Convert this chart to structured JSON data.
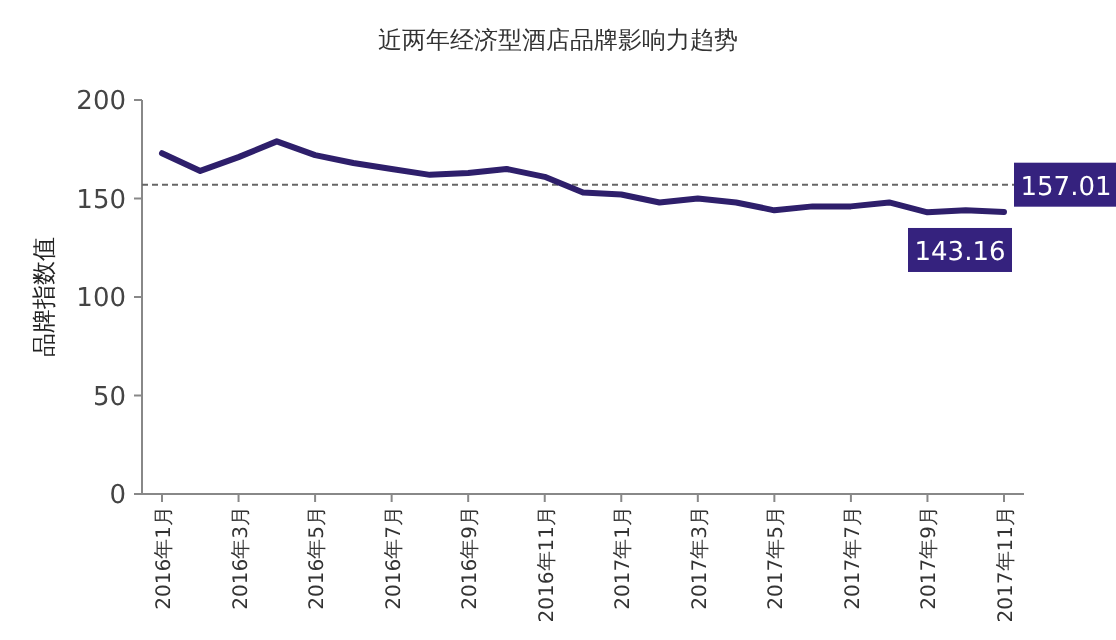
{
  "chart_data": {
    "type": "line",
    "title": "近两年经济型酒店品牌影响力趋势",
    "ylabel": "品牌指数值",
    "categories": [
      "2016年1月",
      null,
      "2016年3月",
      null,
      "2016年5月",
      null,
      "2016年7月",
      null,
      "2016年9月",
      null,
      "2016年11月",
      null,
      "2017年1月",
      null,
      "2017年3月",
      null,
      "2017年5月",
      null,
      "2017年7月",
      null,
      "2017年9月",
      null,
      "2017年11月"
    ],
    "series": [
      {
        "color": "#2e1f6b",
        "values": [
          173,
          164,
          171,
          179,
          172,
          168,
          165,
          162,
          163,
          165,
          161,
          153,
          152,
          148,
          150,
          148,
          144,
          146,
          146,
          148,
          143,
          144,
          143.16
        ],
        "value_labels": [
          null,
          null,
          null,
          null,
          null,
          null,
          null,
          null,
          null,
          null,
          null,
          null,
          null,
          null,
          null,
          null,
          null,
          null,
          null,
          null,
          null,
          null,
          "143.16"
        ]
      }
    ],
    "ref_lines": [
      {
        "axis": "y",
        "value": 157.01,
        "label": "157.01",
        "color": "#666666",
        "line_style": "dashed"
      }
    ],
    "ylim": [
      0,
      200
    ],
    "yticks": [
      0,
      50,
      100,
      150,
      200
    ],
    "grid": false,
    "marker": "none",
    "line_style": "solid"
  }
}
